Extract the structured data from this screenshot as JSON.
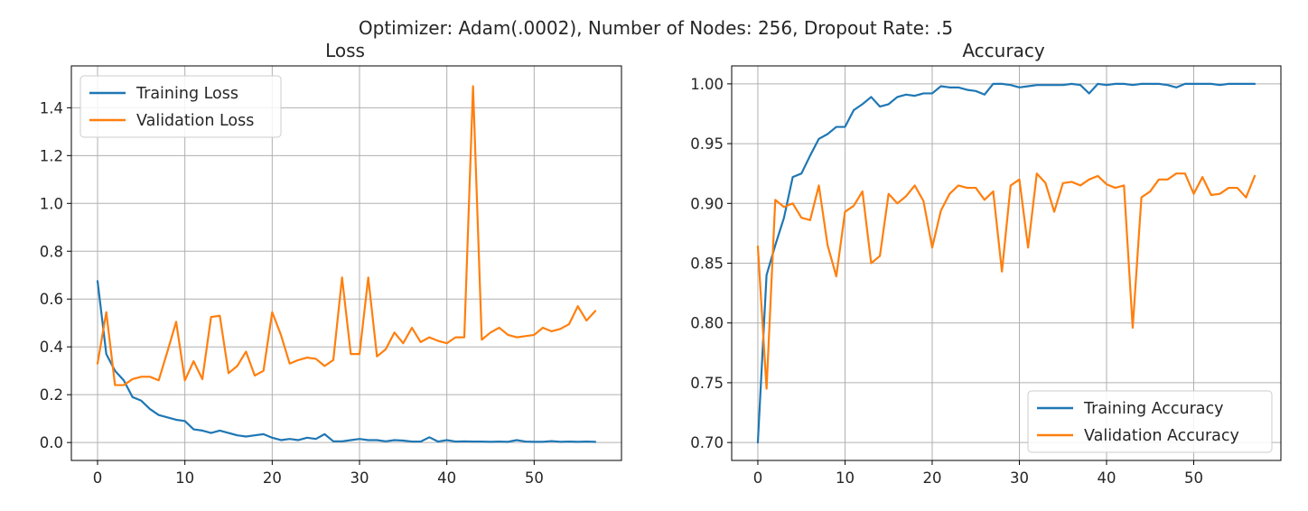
{
  "figure": {
    "suptitle": "Optimizer: Adam(.0002), Number of Nodes: 256, Dropout Rate: .5"
  },
  "chart_data": [
    {
      "type": "line",
      "title": "Loss",
      "xlabel": "",
      "ylabel": "",
      "xlim": [
        -3,
        60
      ],
      "ylim": [
        -0.075,
        1.575
      ],
      "xticks": [
        0,
        10,
        20,
        30,
        40,
        50
      ],
      "yticks": [
        0.0,
        0.2,
        0.4,
        0.6,
        0.8,
        1.0,
        1.2,
        1.4
      ],
      "ytick_labels": [
        "0.0",
        "0.2",
        "0.4",
        "0.6",
        "0.8",
        "1.0",
        "1.2",
        "1.4"
      ],
      "grid": true,
      "legend_position": "upper left",
      "series": [
        {
          "name": "Training Loss",
          "color": "#1f77b4",
          "values": [
            0.675,
            0.37,
            0.3,
            0.26,
            0.19,
            0.175,
            0.14,
            0.115,
            0.105,
            0.095,
            0.09,
            0.055,
            0.05,
            0.04,
            0.05,
            0.04,
            0.03,
            0.025,
            0.03,
            0.035,
            0.02,
            0.01,
            0.015,
            0.01,
            0.02,
            0.015,
            0.035,
            0.005,
            0.005,
            0.01,
            0.015,
            0.01,
            0.01,
            0.005,
            0.01,
            0.008,
            0.004,
            0.004,
            0.022,
            0.004,
            0.01,
            0.004,
            0.005,
            0.004,
            0.004,
            0.003,
            0.004,
            0.003,
            0.01,
            0.004,
            0.003,
            0.003,
            0.006,
            0.003,
            0.004,
            0.003,
            0.004,
            0.003
          ]
        },
        {
          "name": "Validation Loss",
          "color": "#ff7f0e",
          "values": [
            0.33,
            0.545,
            0.24,
            0.24,
            0.265,
            0.275,
            0.275,
            0.26,
            0.38,
            0.505,
            0.26,
            0.34,
            0.265,
            0.525,
            0.53,
            0.29,
            0.32,
            0.38,
            0.28,
            0.3,
            0.545,
            0.45,
            0.33,
            0.345,
            0.355,
            0.35,
            0.32,
            0.345,
            0.69,
            0.37,
            0.37,
            0.69,
            0.36,
            0.39,
            0.46,
            0.415,
            0.48,
            0.42,
            0.44,
            0.425,
            0.415,
            0.44,
            0.44,
            1.49,
            0.43,
            0.46,
            0.48,
            0.45,
            0.44,
            0.445,
            0.45,
            0.48,
            0.465,
            0.475,
            0.495,
            0.57,
            0.51,
            0.55
          ]
        }
      ]
    },
    {
      "type": "line",
      "title": "Accuracy",
      "xlabel": "",
      "ylabel": "",
      "xlim": [
        -3,
        60
      ],
      "ylim": [
        0.685,
        1.015
      ],
      "xticks": [
        0,
        10,
        20,
        30,
        40,
        50
      ],
      "yticks": [
        0.7,
        0.75,
        0.8,
        0.85,
        0.9,
        0.95,
        1.0
      ],
      "ytick_labels": [
        "0.70",
        "0.75",
        "0.80",
        "0.85",
        "0.90",
        "0.95",
        "1.00"
      ],
      "grid": true,
      "legend_position": "lower right",
      "series": [
        {
          "name": "Training Accuracy",
          "color": "#1f77b4",
          "values": [
            0.7,
            0.84,
            0.865,
            0.888,
            0.922,
            0.925,
            0.94,
            0.954,
            0.958,
            0.964,
            0.964,
            0.978,
            0.983,
            0.989,
            0.981,
            0.983,
            0.989,
            0.991,
            0.99,
            0.992,
            0.992,
            0.998,
            0.997,
            0.997,
            0.995,
            0.994,
            0.991,
            1.0,
            1.0,
            0.999,
            0.997,
            0.998,
            0.999,
            0.999,
            0.999,
            0.999,
            1.0,
            0.999,
            0.992,
            1.0,
            0.999,
            1.0,
            1.0,
            0.999,
            1.0,
            1.0,
            1.0,
            0.999,
            0.997,
            1.0,
            1.0,
            1.0,
            1.0,
            0.999,
            1.0,
            1.0,
            1.0,
            1.0
          ]
        },
        {
          "name": "Validation Accuracy",
          "color": "#ff7f0e",
          "values": [
            0.864,
            0.745,
            0.903,
            0.897,
            0.9,
            0.888,
            0.886,
            0.915,
            0.865,
            0.839,
            0.893,
            0.898,
            0.91,
            0.85,
            0.856,
            0.908,
            0.9,
            0.906,
            0.915,
            0.902,
            0.863,
            0.894,
            0.908,
            0.915,
            0.913,
            0.913,
            0.903,
            0.91,
            0.843,
            0.915,
            0.92,
            0.863,
            0.925,
            0.917,
            0.893,
            0.917,
            0.918,
            0.915,
            0.92,
            0.923,
            0.916,
            0.913,
            0.915,
            0.796,
            0.905,
            0.91,
            0.92,
            0.92,
            0.925,
            0.925,
            0.908,
            0.922,
            0.907,
            0.908,
            0.913,
            0.913,
            0.905,
            0.923
          ]
        }
      ]
    }
  ]
}
